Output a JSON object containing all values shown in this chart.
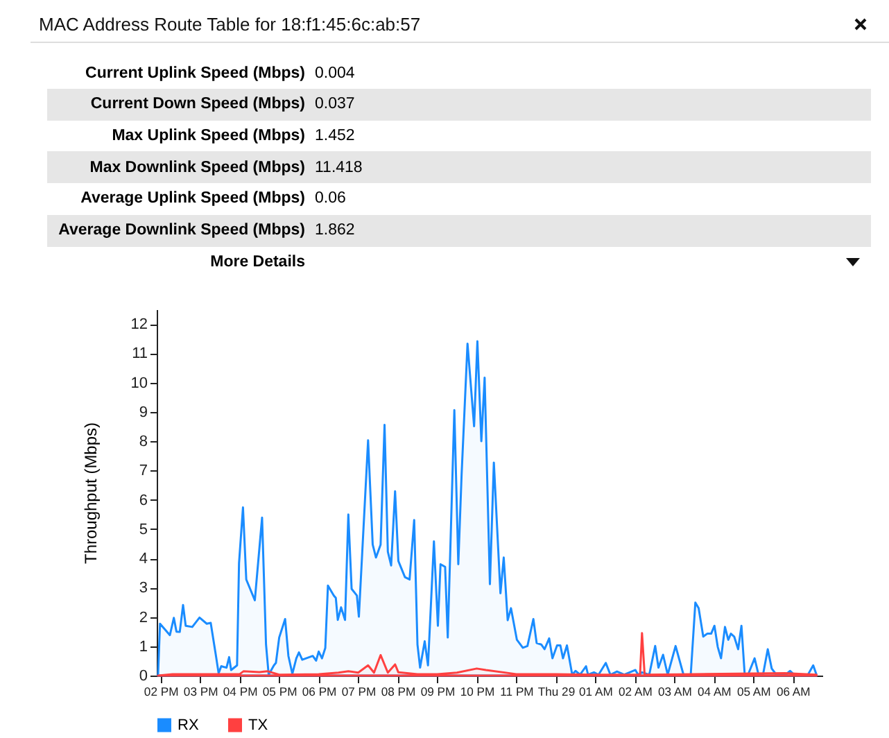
{
  "chart_data": [
    {
      "type": "other",
      "title": "MAC Address Route Table for 18:f1:45:6c:ab:57",
      "categories": [
        "Current Uplink Speed (Mbps)",
        "Current Down Speed (Mbps)",
        "Max Uplink Speed (Mbps)",
        "Max Downlink Speed (Mbps)",
        "Average Uplink Speed (Mbps)",
        "Average Downlink Speed (Mbps)"
      ],
      "value_labels": [
        "0.004",
        "0.037",
        "1.452",
        "11.418",
        "0.06",
        "1.862"
      ],
      "annotations": [
        "More Details"
      ]
    },
    {
      "type": "area",
      "ylabel": "Throughput (Mbps)",
      "legend": "bottom",
      "grid": false,
      "xlim": [
        "--03-28T13:54",
        "--03-29T06:45"
      ],
      "ylim": [
        0,
        12.5
      ],
      "xticks": [
        {
          "value": "--03-28T14:00",
          "label": "02 PM"
        },
        {
          "value": "--03-28T15:00",
          "label": "03 PM"
        },
        {
          "value": "--03-28T16:00",
          "label": "04 PM"
        },
        {
          "value": "--03-28T17:00",
          "label": "05 PM"
        },
        {
          "value": "--03-28T18:00",
          "label": "06 PM"
        },
        {
          "value": "--03-28T19:00",
          "label": "07 PM"
        },
        {
          "value": "--03-28T20:00",
          "label": "08 PM"
        },
        {
          "value": "--03-28T21:00",
          "label": "09 PM"
        },
        {
          "value": "--03-28T22:00",
          "label": "10 PM"
        },
        {
          "value": "--03-28T23:00",
          "label": "11 PM"
        },
        {
          "value": "--03-29T00:00",
          "label": "Thu 29"
        },
        {
          "value": "--03-29T01:00",
          "label": "01 AM"
        },
        {
          "value": "--03-29T02:00",
          "label": "02 AM"
        },
        {
          "value": "--03-29T03:00",
          "label": "03 AM"
        },
        {
          "value": "--03-29T04:00",
          "label": "04 AM"
        },
        {
          "value": "--03-29T05:00",
          "label": "05 AM"
        },
        {
          "value": "--03-29T06:00",
          "label": "06 AM"
        }
      ],
      "yticks": [
        0,
        1,
        2,
        3,
        4,
        5,
        6,
        7,
        8,
        9,
        10,
        11,
        12
      ],
      "series": [
        {
          "name": "RX",
          "color": "#1a8cff",
          "x": [
            "--03-28T13:56",
            "--03-28T13:59",
            "--03-28T14:14",
            "--03-28T14:20",
            "--03-28T14:24",
            "--03-28T14:29",
            "--03-28T14:34",
            "--03-28T14:38",
            "--03-28T14:48",
            "--03-28T14:59",
            "--03-28T15:10",
            "--03-28T15:16",
            "--03-28T15:24",
            "--03-28T15:28",
            "--03-28T15:32",
            "--03-28T15:40",
            "--03-28T15:44",
            "--03-28T15:47",
            "--03-28T15:56",
            "--03-28T15:59",
            "--03-28T16:05",
            "--03-28T16:10",
            "--03-28T16:23",
            "--03-28T16:34",
            "--03-28T16:40",
            "--03-28T16:44",
            "--03-28T16:52",
            "--03-28T16:55",
            "--03-28T17:00",
            "--03-28T17:09",
            "--03-28T17:14",
            "--03-28T17:20",
            "--03-28T17:26",
            "--03-28T17:30",
            "--03-28T17:35",
            "--03-28T17:51",
            "--03-28T17:56",
            "--03-28T18:00",
            "--03-28T18:05",
            "--03-28T18:10",
            "--03-28T18:14",
            "--03-28T18:23",
            "--03-28T18:26",
            "--03-28T18:29",
            "--03-28T18:34",
            "--03-28T18:40",
            "--03-28T18:45",
            "--03-28T18:50",
            "--03-28T18:58",
            "--03-28T19:01",
            "--03-28T19:15",
            "--03-28T19:22",
            "--03-28T19:27",
            "--03-28T19:34",
            "--03-28T19:40",
            "--03-28T19:45",
            "--03-28T19:50",
            "--03-28T19:56",
            "--03-28T20:01",
            "--03-28T20:11",
            "--03-28T20:18",
            "--03-28T20:25",
            "--03-28T20:30",
            "--03-28T20:34",
            "--03-28T20:41",
            "--03-28T20:46",
            "--03-28T20:55",
            "--03-28T21:01",
            "--03-28T21:05",
            "--03-28T21:12",
            "--03-28T21:16",
            "--03-28T21:26",
            "--03-28T21:32",
            "--03-28T21:37",
            "--03-28T21:46",
            "--03-28T21:56",
            "--03-28T22:01",
            "--03-28T22:07",
            "--03-28T22:12",
            "--03-28T22:20",
            "--03-28T22:26",
            "--03-28T22:36",
            "--03-28T22:41",
            "--03-28T22:47",
            "--03-28T22:52",
            "--03-28T23:01",
            "--03-28T23:10",
            "--03-28T23:17",
            "--03-28T23:26",
            "--03-28T23:31",
            "--03-28T23:38",
            "--03-28T23:43",
            "--03-28T23:50",
            "--03-28T23:55",
            "--03-29T00:02",
            "--03-29T00:07",
            "--03-29T00:11",
            "--03-29T00:17",
            "--03-29T00:25",
            "--03-29T00:30",
            "--03-29T00:37",
            "--03-29T00:46",
            "--03-29T00:49",
            "--03-29T00:58",
            "--03-29T01:05",
            "--03-29T01:16",
            "--03-29T01:23",
            "--03-29T01:33",
            "--03-29T01:44",
            "--03-29T02:01",
            "--03-29T02:05",
            "--03-29T02:11",
            "--03-29T02:22",
            "--03-29T02:31",
            "--03-29T02:36",
            "--03-29T02:43",
            "--03-29T02:50",
            "--03-29T03:02",
            "--03-29T03:14",
            "--03-29T03:25",
            "--03-29T03:32",
            "--03-29T03:37",
            "--03-29T03:44",
            "--03-29T03:50",
            "--03-29T03:56",
            "--03-29T04:01",
            "--03-29T04:06",
            "--03-29T04:11",
            "--03-29T04:17",
            "--03-29T04:22",
            "--03-29T04:26",
            "--03-29T04:31",
            "--03-29T04:37",
            "--03-29T04:42",
            "--03-29T04:47",
            "--03-29T04:52",
            "--03-29T05:02",
            "--03-29T05:08",
            "--03-29T05:15",
            "--03-29T05:22",
            "--03-29T05:28",
            "--03-29T05:35",
            "--03-29T05:49",
            "--03-29T05:56",
            "--03-29T06:02",
            "--03-29T06:10",
            "--03-29T06:23",
            "--03-29T06:31",
            "--03-29T06:36"
          ],
          "values": [
            0,
            1.77,
            1.38,
            1.97,
            1.5,
            1.49,
            2.41,
            1.7,
            1.66,
            1.98,
            1.77,
            1.8,
            0.67,
            0.08,
            0.32,
            0.27,
            0.63,
            0.19,
            0.35,
            3.84,
            5.74,
            3.28,
            2.57,
            5.39,
            1.06,
            0.03,
            0.35,
            0.43,
            1.3,
            1.93,
            0.67,
            0.06,
            0.59,
            0.79,
            0.54,
            0.67,
            0.51,
            0.82,
            0.59,
            0.94,
            3.07,
            2.73,
            2.65,
            1.9,
            2.33,
            1.9,
            5.5,
            2.96,
            2.73,
            2.01,
            8.03,
            4.47,
            4.03,
            4.47,
            8.56,
            4.23,
            3.76,
            6.29,
            3.91,
            3.36,
            3.28,
            5.31,
            1.06,
            0.27,
            1.17,
            0.35,
            4.58,
            1.7,
            3.8,
            3.71,
            1.3,
            9.06,
            3.8,
            6.85,
            11.33,
            8.51,
            11.41,
            8.0,
            10.17,
            3.12,
            7.27,
            2.81,
            4.03,
            1.89,
            2.3,
            1.22,
            0.95,
            1.01,
            1.93,
            1.11,
            1.06,
            0.9,
            1.27,
            0.59,
            1.03,
            1.03,
            0.59,
            1.03,
            0.03,
            0.16,
            0.03,
            0.32,
            0.03,
            0.11,
            0.03,
            0.43,
            0.03,
            0.14,
            0.03,
            0.19,
            0.03,
            0.11,
            0.03,
            1.01,
            0.27,
            0.71,
            0.03,
            1.01,
            0.03,
            0.03,
            2.49,
            2.3,
            1.33,
            1.43,
            1.43,
            1.7,
            0.98,
            0.59,
            1.66,
            1.22,
            1.43,
            1.33,
            0.9,
            1.7,
            0.03,
            0.03,
            0.59,
            0.03,
            0.06,
            0.9,
            0.24,
            0.03,
            0.03,
            0.16,
            0.03,
            0.03,
            0.03,
            0.35,
            0.03
          ]
        },
        {
          "name": "TX",
          "color": "#ff4040",
          "x": [
            "--03-28T13:56",
            "--03-28T14:18",
            "--03-28T15:00",
            "--03-28T16:00",
            "--03-28T16:06",
            "--03-28T16:30",
            "--03-28T16:42",
            "--03-28T17:00",
            "--03-28T18:00",
            "--03-28T18:30",
            "--03-28T18:45",
            "--03-28T19:00",
            "--03-28T19:15",
            "--03-28T19:24",
            "--03-28T19:34",
            "--03-28T19:45",
            "--03-28T19:56",
            "--03-28T20:01",
            "--03-28T20:30",
            "--03-28T21:00",
            "--03-28T21:30",
            "--03-28T22:00",
            "--03-28T22:14",
            "--03-28T23:00",
            "--03-29T00:00",
            "--03-29T01:00",
            "--03-29T02:08",
            "--03-29T02:11",
            "--03-29T02:15",
            "--03-29T03:30",
            "--03-29T05:48",
            "--03-29T06:36"
          ],
          "values": [
            0,
            0.05,
            0.05,
            0.05,
            0.15,
            0.12,
            0.15,
            0.03,
            0.05,
            0.1,
            0.15,
            0.1,
            0.35,
            0.1,
            0.7,
            0.1,
            0.38,
            0.11,
            0.05,
            0.05,
            0.1,
            0.24,
            0.19,
            0.05,
            0.05,
            0.03,
            0.03,
            1.45,
            0.03,
            0.05,
            0.08,
            0.03
          ]
        }
      ]
    }
  ]
}
